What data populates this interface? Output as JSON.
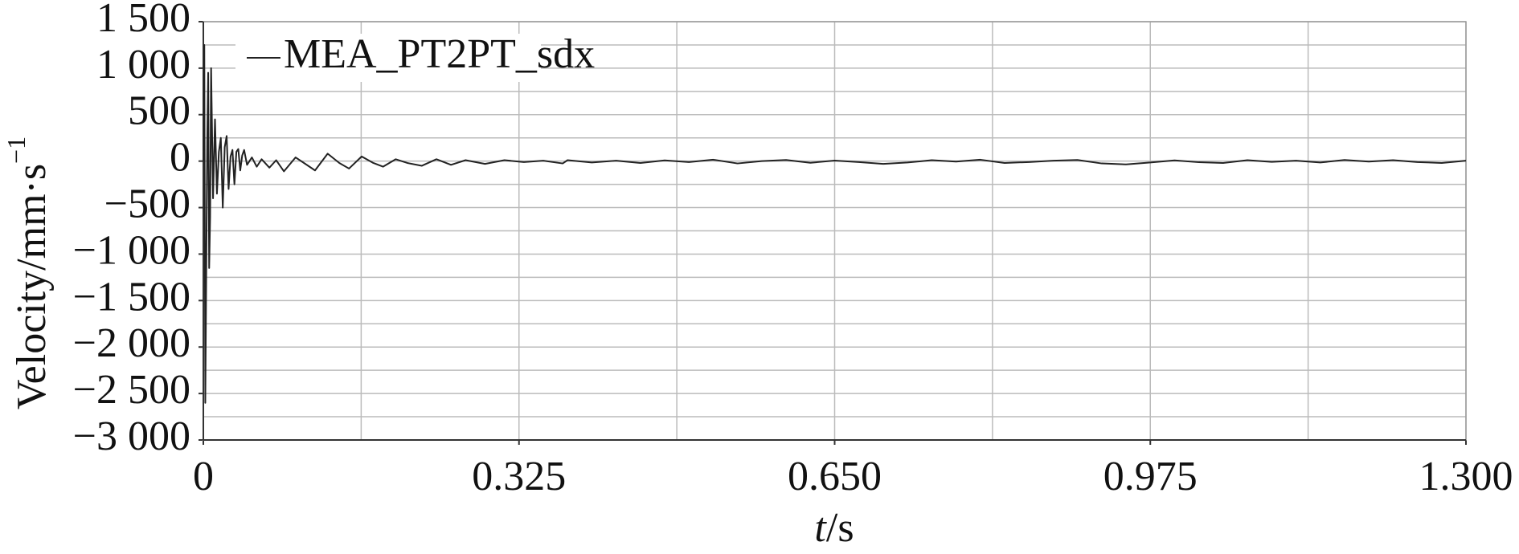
{
  "chart_data": {
    "type": "line",
    "ylabel": "Velocity/mm·s",
    "ylabel_sup": "−1",
    "xlabel_var": "t",
    "xlabel_unit": "/s",
    "legend": "upper left",
    "grid": true,
    "xlim": [
      0,
      1.3
    ],
    "xticks": [
      0,
      0.325,
      {
        "value": 0.65,
        "label": "0.650"
      },
      0.975,
      {
        "value": 1.3,
        "label": "1.300"
      }
    ],
    "x_minor_grid": [
      0.1625,
      0.4875,
      0.8125,
      1.1375
    ],
    "ylim": [
      -3000,
      1500
    ],
    "yticks": [
      {
        "value": -3000,
        "label": "−3 000"
      },
      {
        "value": -2500,
        "label": "−2 500"
      },
      {
        "value": -2000,
        "label": "−2 000"
      },
      {
        "value": -1500,
        "label": "−1 500"
      },
      {
        "value": -1000,
        "label": "−1 000"
      },
      {
        "value": -500,
        "label": "−500"
      },
      0,
      500,
      {
        "value": 1000,
        "label": "1 000"
      },
      {
        "value": 1500,
        "label": "1 500"
      }
    ],
    "y_minor_grid": [
      -2750,
      -2250,
      -1750,
      -1250,
      -750,
      -250,
      250,
      750,
      1250
    ],
    "series": [
      {
        "name": "MEA_PT2PT_sdx",
        "color": "#222222",
        "x": [
          0,
          0.001,
          0.002,
          0.004,
          0.005,
          0.006,
          0.007,
          0.008,
          0.009,
          0.01,
          0.012,
          0.014,
          0.016,
          0.018,
          0.02,
          0.022,
          0.024,
          0.026,
          0.028,
          0.03,
          0.032,
          0.034,
          0.036,
          0.038,
          0.04,
          0.042,
          0.045,
          0.05,
          0.055,
          0.06,
          0.068,
          0.075,
          0.083,
          0.095,
          0.105,
          0.115,
          0.128,
          0.14,
          0.15,
          0.163,
          0.175,
          0.185,
          0.198,
          0.21,
          0.225,
          0.24,
          0.255,
          0.27,
          0.29,
          0.31,
          0.33,
          0.35,
          0.37,
          0.375,
          0.4,
          0.425,
          0.45,
          0.475,
          0.5,
          0.525,
          0.55,
          0.575,
          0.6,
          0.625,
          0.65,
          0.675,
          0.7,
          0.725,
          0.75,
          0.775,
          0.8,
          0.825,
          0.85,
          0.875,
          0.9,
          0.925,
          0.95,
          0.975,
          1.0,
          1.025,
          1.05,
          1.075,
          1.1,
          1.125,
          1.15,
          1.175,
          1.2,
          1.225,
          1.25,
          1.275,
          1.3
        ],
        "values": [
          0,
          1250,
          -2600,
          200,
          950,
          -1150,
          -600,
          1000,
          300,
          -400,
          450,
          -350,
          100,
          250,
          -500,
          150,
          270,
          -300,
          50,
          120,
          -250,
          100,
          130,
          -100,
          60,
          120,
          -40,
          40,
          -60,
          20,
          -70,
          10,
          -110,
          40,
          -30,
          -100,
          80,
          -20,
          -80,
          50,
          -20,
          -60,
          20,
          -20,
          -50,
          20,
          -40,
          10,
          -30,
          10,
          -10,
          5,
          -25,
          10,
          -15,
          5,
          -20,
          8,
          -10,
          15,
          -25,
          0,
          12,
          -18,
          6,
          -10,
          -30,
          -15,
          10,
          -5,
          15,
          -20,
          -10,
          5,
          12,
          -25,
          -35,
          -15,
          8,
          -12,
          -20,
          10,
          -8,
          5,
          -15,
          12,
          -5,
          10,
          -10,
          -20,
          5
        ]
      }
    ]
  }
}
